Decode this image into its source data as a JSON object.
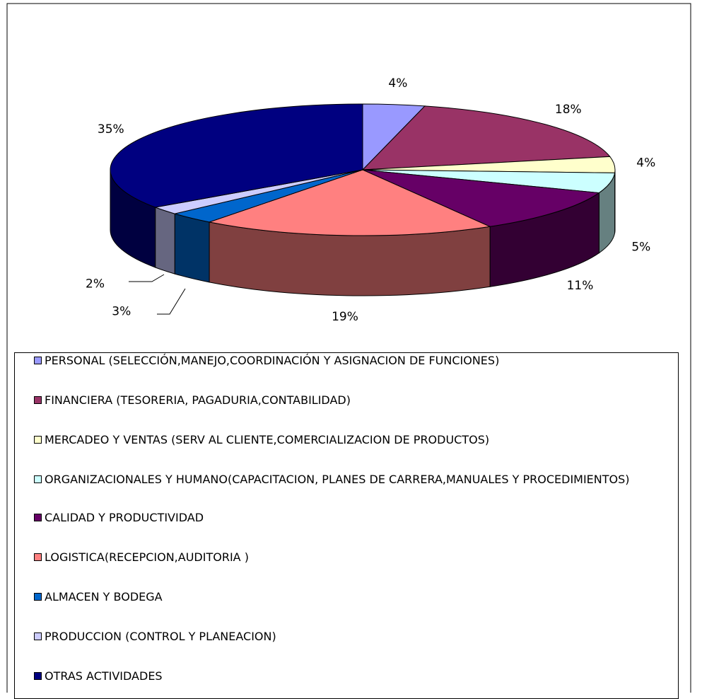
{
  "chart_data": {
    "type": "pie",
    "categories": [
      "PERSONAL (SELECCIÓN,MANEJO,COORDINACIÓN  Y ASIGNACION DE FUNCIONES)",
      "FINANCIERA (TESORERIA, PAGADURIA,CONTABILIDAD)",
      "MERCADEO Y VENTAS (SERV AL CLIENTE,COMERCIALIZACION DE PRODUCTOS)",
      "ORGANIZACIONALES Y HUMANO(CAPACITACION, PLANES DE CARRERA,MANUALES Y PROCEDIMIENTOS)",
      "CALIDAD Y PRODUCTIVIDAD",
      "LOGISTICA(RECEPCION,AUDITORIA )",
      "ALMACEN Y BODEGA",
      "PRODUCCION (CONTROL Y PLANEACION)",
      "OTRAS ACTIVIDADES"
    ],
    "values": [
      4,
      18,
      4,
      5,
      11,
      19,
      3,
      2,
      35
    ],
    "value_labels": [
      "4%",
      "18%",
      "4%",
      "5%",
      "11%",
      "19%",
      "3%",
      "2%",
      "35%"
    ],
    "colors": [
      "#9999ff",
      "#993366",
      "#ffffcc",
      "#ccffff",
      "#660066",
      "#ff8080",
      "#0066cc",
      "#ccccff",
      "#000080"
    ],
    "legend": "bottom"
  }
}
